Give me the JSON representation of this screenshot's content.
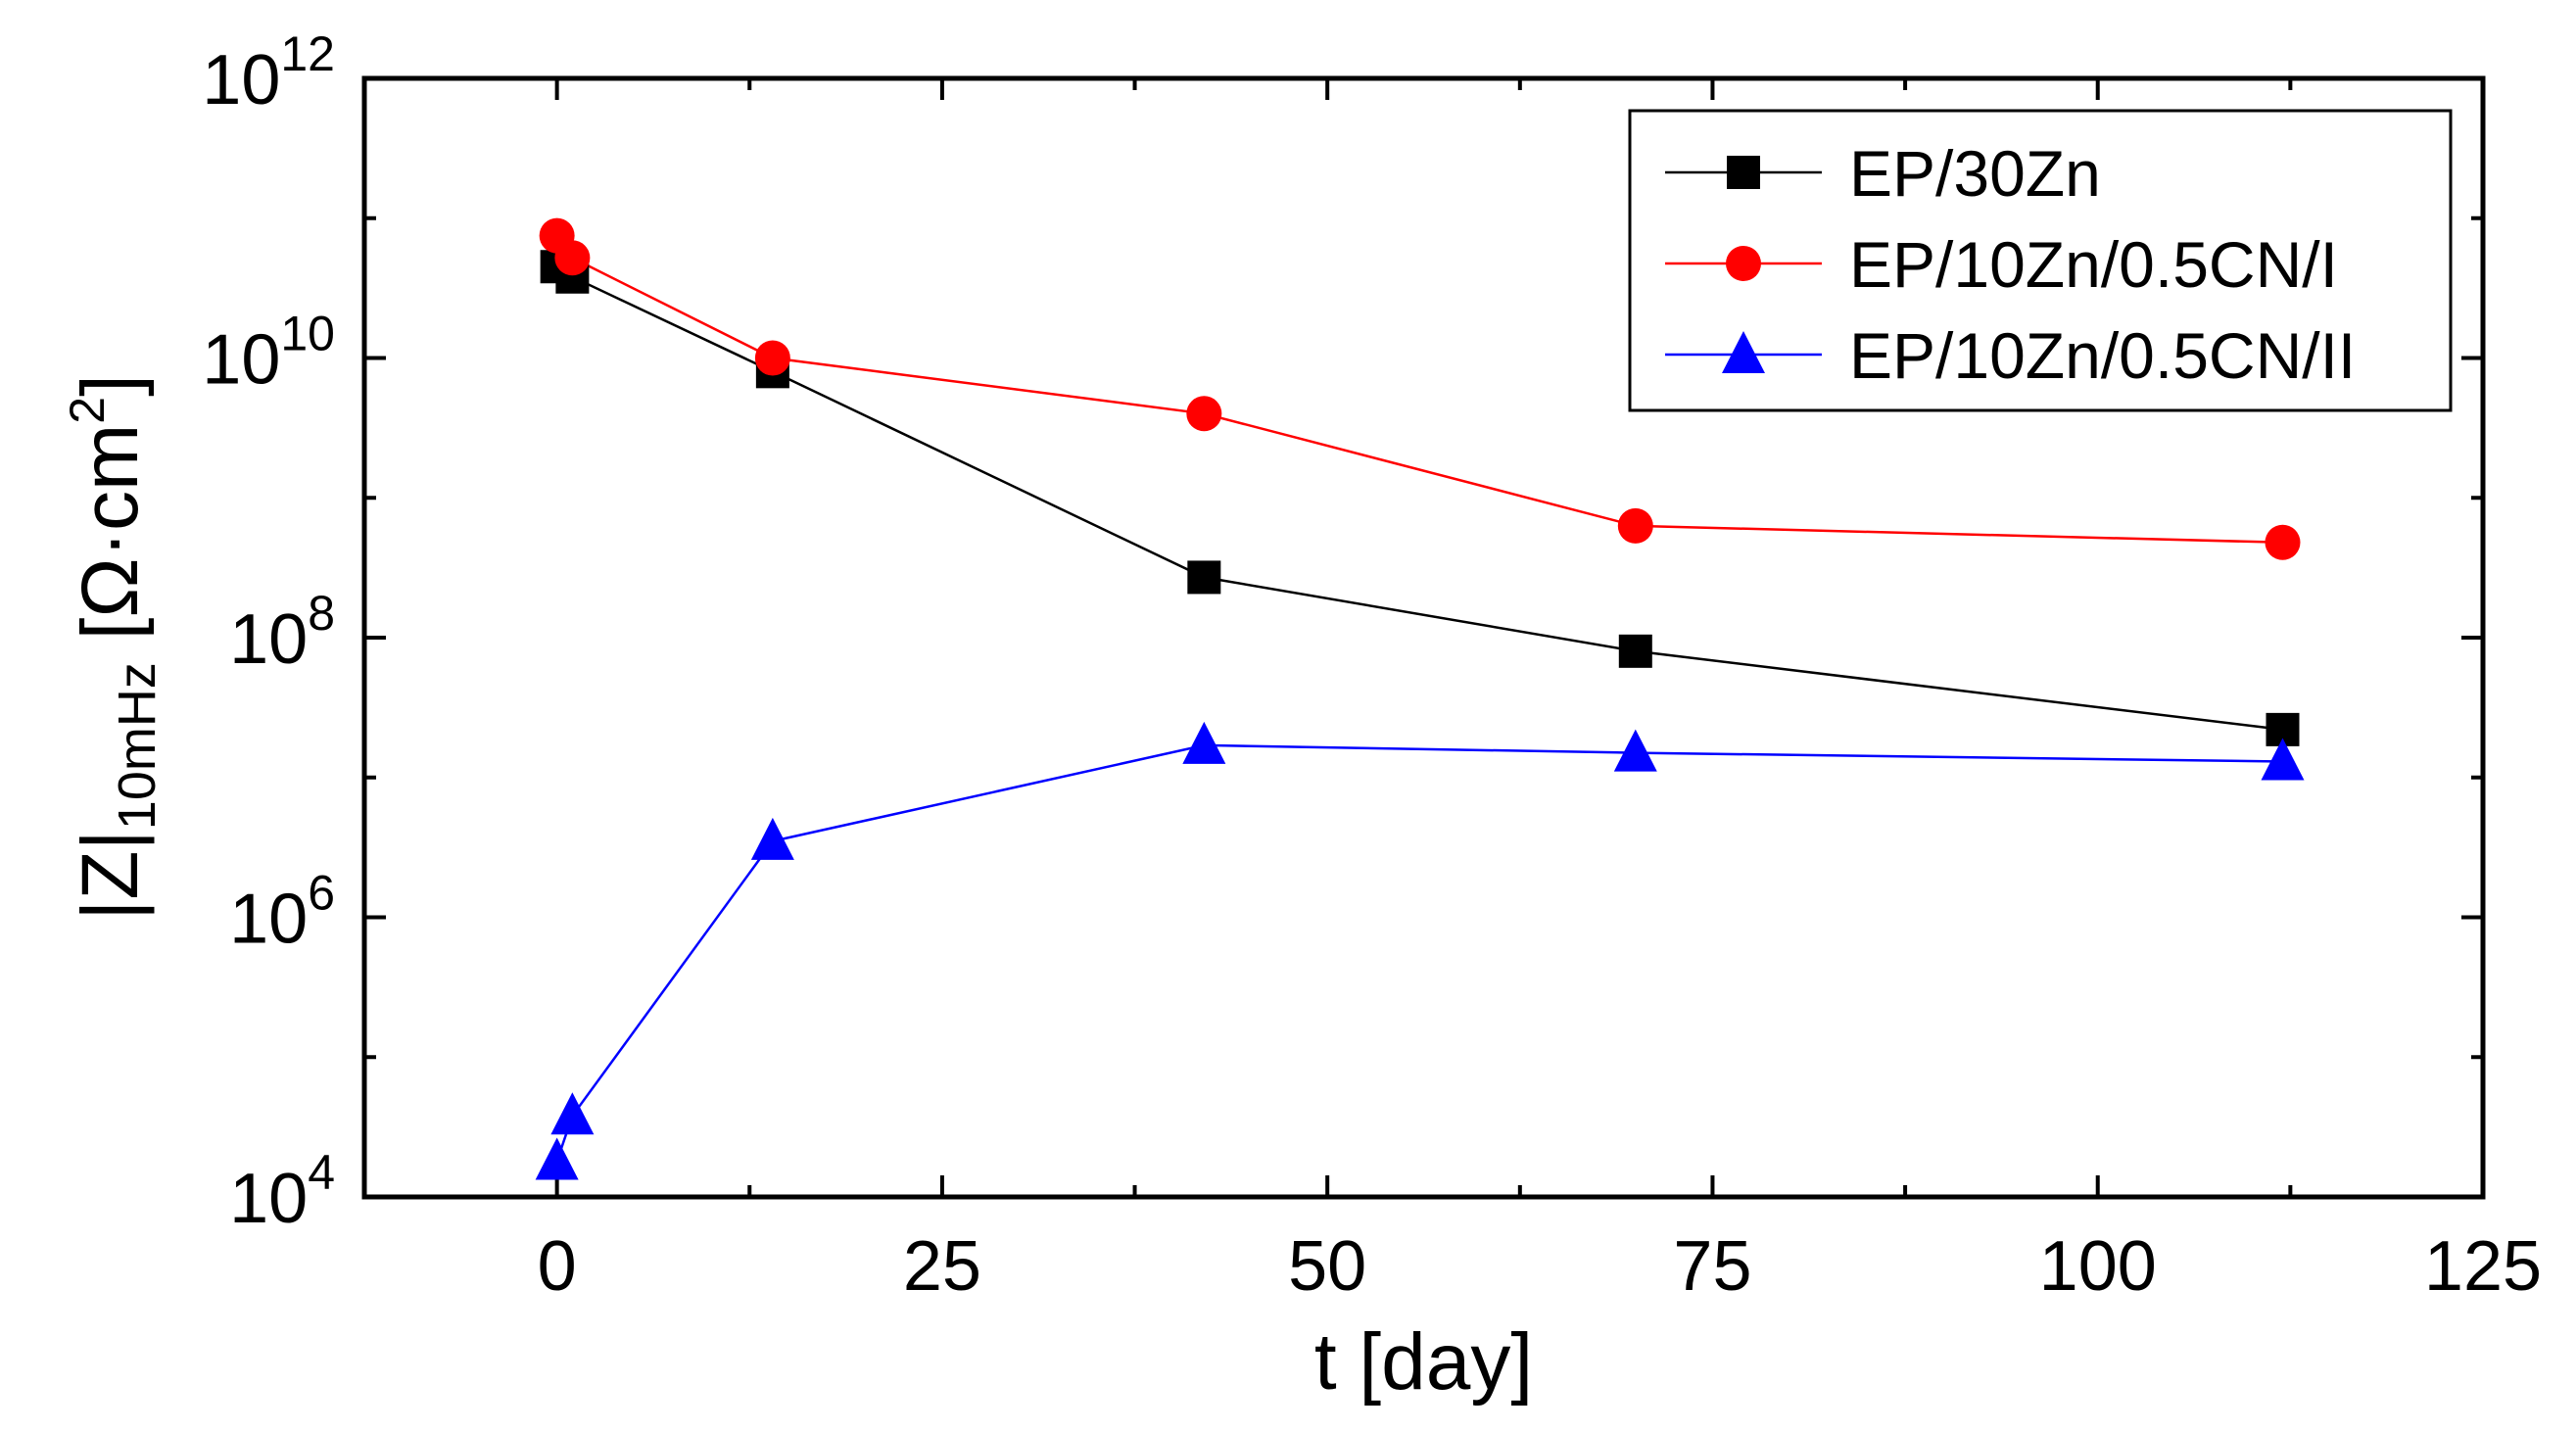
{
  "chart_data": {
    "type": "line",
    "title": "",
    "xlabel": "t [day]",
    "ylabel": {
      "main": "|Z|",
      "subscript": "10mHz",
      "unit_open": " [",
      "unit_symbol": "Ω·cm",
      "unit_power": "2",
      "unit_close": "]"
    },
    "xlim": [
      -12.5,
      125
    ],
    "ylim_log10": [
      4,
      12
    ],
    "x_ticks": [
      0,
      25,
      50,
      75,
      100,
      125
    ],
    "x_tick_labels": [
      "0",
      "25",
      "50",
      "75",
      "100",
      "125"
    ],
    "y_ticks_exponent": [
      4,
      6,
      8,
      10,
      12
    ],
    "y_tick_labels": [
      {
        "base": "10",
        "exp": "4"
      },
      {
        "base": "10",
        "exp": "6"
      },
      {
        "base": "10",
        "exp": "8"
      },
      {
        "base": "10",
        "exp": "10"
      },
      {
        "base": "10",
        "exp": "12"
      }
    ],
    "yscale": "log",
    "legend_position": "top-right",
    "series": [
      {
        "name": "EP/30Zn",
        "color": "#000000",
        "marker": "square",
        "x": [
          0,
          1,
          14,
          42,
          70,
          112
        ],
        "y": [
          45000000000,
          38000000000,
          8000000000,
          270000000,
          80000000,
          22000000
        ]
      },
      {
        "name": "EP/10Zn/0.5CN/I",
        "color": "#ff0000",
        "marker": "circle",
        "x": [
          0,
          1,
          14,
          42,
          70,
          112
        ],
        "y": [
          75000000000,
          52000000000,
          10000000000,
          4000000000,
          630000000,
          480000000
        ]
      },
      {
        "name": "EP/10Zn/0.5CN/II",
        "color": "#0000ff",
        "marker": "triangle",
        "x": [
          0,
          1,
          14,
          42,
          70,
          112
        ],
        "y": [
          18000,
          38000,
          3500000,
          17000000,
          15000000,
          13000000
        ]
      }
    ]
  }
}
